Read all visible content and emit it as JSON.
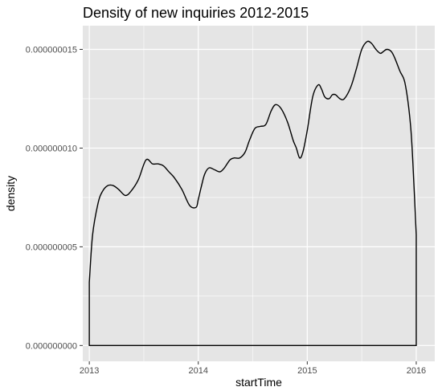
{
  "chart_data": {
    "type": "area",
    "title": "Density of new inquiries 2012-2015",
    "xlabel": "startTime",
    "ylabel": "density",
    "xlim": [
      2012.94,
      2016.17
    ],
    "ylim": [
      -8e-10,
      1.62e-08
    ],
    "x_ticks": [
      2013,
      2014,
      2015,
      2016
    ],
    "x_tick_labels": [
      "2013",
      "2014",
      "2015",
      "2016"
    ],
    "y_ticks": [
      0,
      5e-09,
      1e-08,
      1.5e-08
    ],
    "y_tick_labels": [
      "0.000000000",
      "0.000000005",
      "0.000000010",
      "0.000000015"
    ],
    "grid": true,
    "series": [
      {
        "x": [
          2013.0,
          2013.03,
          2013.08,
          2013.12,
          2013.17,
          2013.22,
          2013.27,
          2013.33,
          2013.38,
          2013.45,
          2013.52,
          2013.58,
          2013.63,
          2013.68,
          2013.73,
          2013.78,
          2013.85,
          2013.92,
          2013.98,
          2014.0,
          2014.03,
          2014.06,
          2014.1,
          2014.15,
          2014.2,
          2014.24,
          2014.29,
          2014.33,
          2014.38,
          2014.43,
          2014.47,
          2014.52,
          2014.57,
          2014.62,
          2014.67,
          2014.71,
          2014.76,
          2014.82,
          2014.87,
          2014.9,
          2014.93,
          2014.96,
          2015.0,
          2015.05,
          2015.1,
          2015.13,
          2015.16,
          2015.2,
          2015.23,
          2015.26,
          2015.3,
          2015.34,
          2015.4,
          2015.45,
          2015.5,
          2015.55,
          2015.59,
          2015.63,
          2015.67,
          2015.7,
          2015.73,
          2015.77,
          2015.8,
          2015.85,
          2015.9,
          2015.95,
          2015.98,
          2016.0
        ],
        "y": [
          3.2e-09,
          5.6e-09,
          7.2e-09,
          7.8e-09,
          8.1e-09,
          8.1e-09,
          7.9e-09,
          7.6e-09,
          7.8e-09,
          8.4e-09,
          9.4e-09,
          9.2e-09,
          9.2e-09,
          9.1e-09,
          8.8e-09,
          8.5e-09,
          7.9e-09,
          7.1e-09,
          7e-09,
          7.4e-09,
          8.1e-09,
          8.7e-09,
          9e-09,
          8.9e-09,
          8.8e-09,
          9e-09,
          9.4e-09,
          9.5e-09,
          9.5e-09,
          9.8e-09,
          1.04e-08,
          1.1e-08,
          1.11e-08,
          1.12e-08,
          1.19e-08,
          1.22e-08,
          1.2e-08,
          1.13e-08,
          1.04e-08,
          1e-08,
          9.5e-09,
          9.8e-09,
          1.09e-08,
          1.26e-08,
          1.32e-08,
          1.3e-08,
          1.26e-08,
          1.25e-08,
          1.27e-08,
          1.27e-08,
          1.25e-08,
          1.25e-08,
          1.31e-08,
          1.4e-08,
          1.5e-08,
          1.54e-08,
          1.53e-08,
          1.5e-08,
          1.48e-08,
          1.49e-08,
          1.5e-08,
          1.49e-08,
          1.46e-08,
          1.39e-08,
          1.32e-08,
          1.1e-08,
          8e-09,
          5.6e-09
        ]
      }
    ],
    "colors": {
      "panel_background": "#e5e5e5",
      "grid_major": "#ffffff",
      "curve": "#000000"
    }
  }
}
